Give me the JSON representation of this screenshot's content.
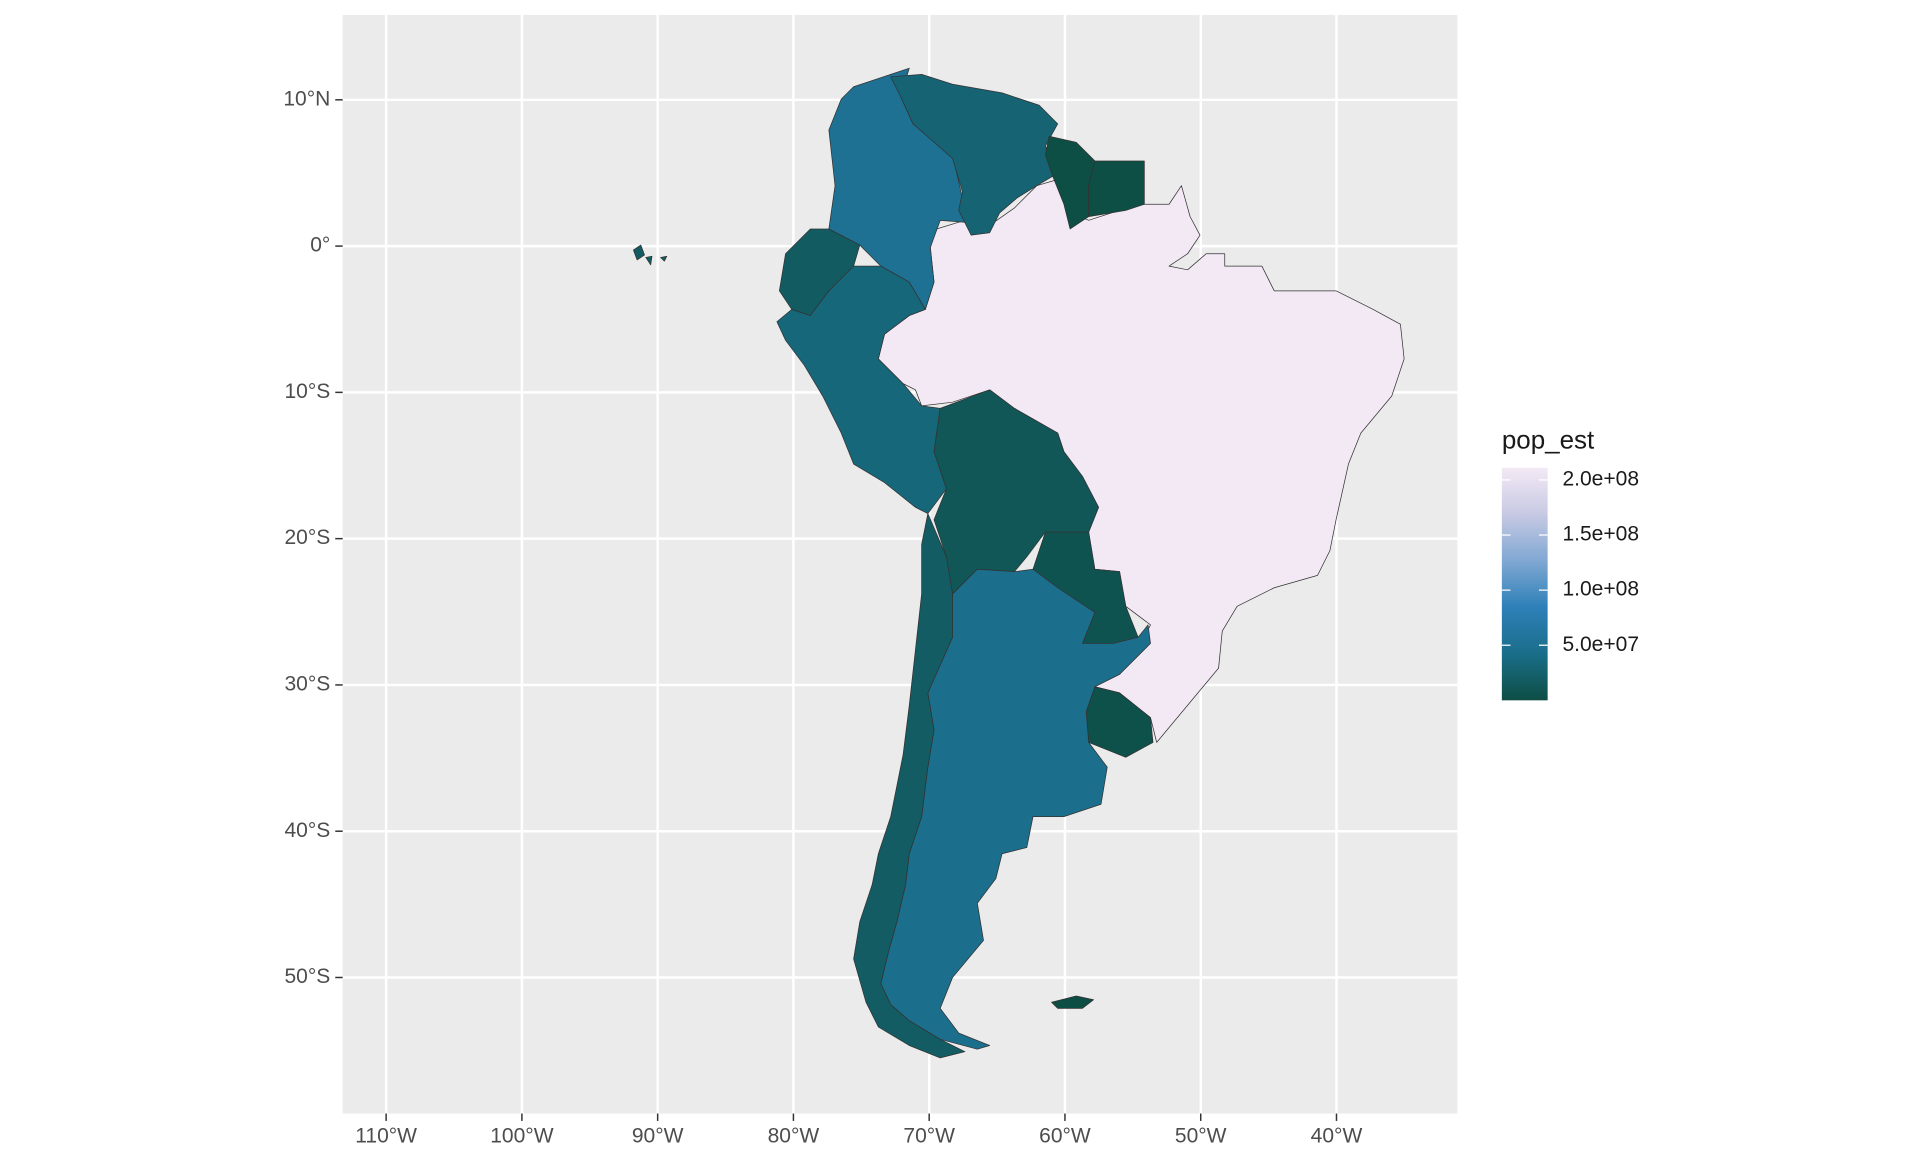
{
  "chart_data": {
    "type": "choropleth",
    "xlim": [
      -113.2,
      -31.1
    ],
    "ylim": [
      -59.3,
      15.8
    ],
    "xticks": [
      {
        "value": -110,
        "label": "110°W"
      },
      {
        "value": -100,
        "label": "100°W"
      },
      {
        "value": -90,
        "label": "90°W"
      },
      {
        "value": -80,
        "label": "80°W"
      },
      {
        "value": -70,
        "label": "70°W"
      },
      {
        "value": -60,
        "label": "60°W"
      },
      {
        "value": -50,
        "label": "50°W"
      },
      {
        "value": -40,
        "label": "40°W"
      }
    ],
    "yticks": [
      {
        "value": 10,
        "label": "10°N"
      },
      {
        "value": 0,
        "label": "0°"
      },
      {
        "value": -10,
        "label": "10°S"
      },
      {
        "value": -20,
        "label": "20°S"
      },
      {
        "value": -30,
        "label": "30°S"
      },
      {
        "value": -40,
        "label": "40°S"
      },
      {
        "value": -50,
        "label": "50°S"
      }
    ],
    "values": [
      211049527,
      50339443,
      28515829,
      782766,
      581363,
      17373662,
      32510453,
      11513100,
      7044636,
      3461734,
      44938712,
      18952038,
      3398
    ],
    "legend": {
      "title": "pop_est",
      "range": [
        3398,
        211049527
      ],
      "ticks": [
        {
          "value": 200000000,
          "label": "2.0e+08"
        },
        {
          "value": 150000000,
          "label": "1.5e+08"
        },
        {
          "value": 100000000,
          "label": "1.0e+08"
        },
        {
          "value": 50000000,
          "label": "5.0e+07"
        }
      ],
      "colors": [
        "#0d4e44",
        "#1a6e8a",
        "#2e80b8",
        "#80a8d3",
        "#c7c9e3",
        "#f3e9f5"
      ]
    },
    "background": "#ebebeb",
    "grid": true
  }
}
